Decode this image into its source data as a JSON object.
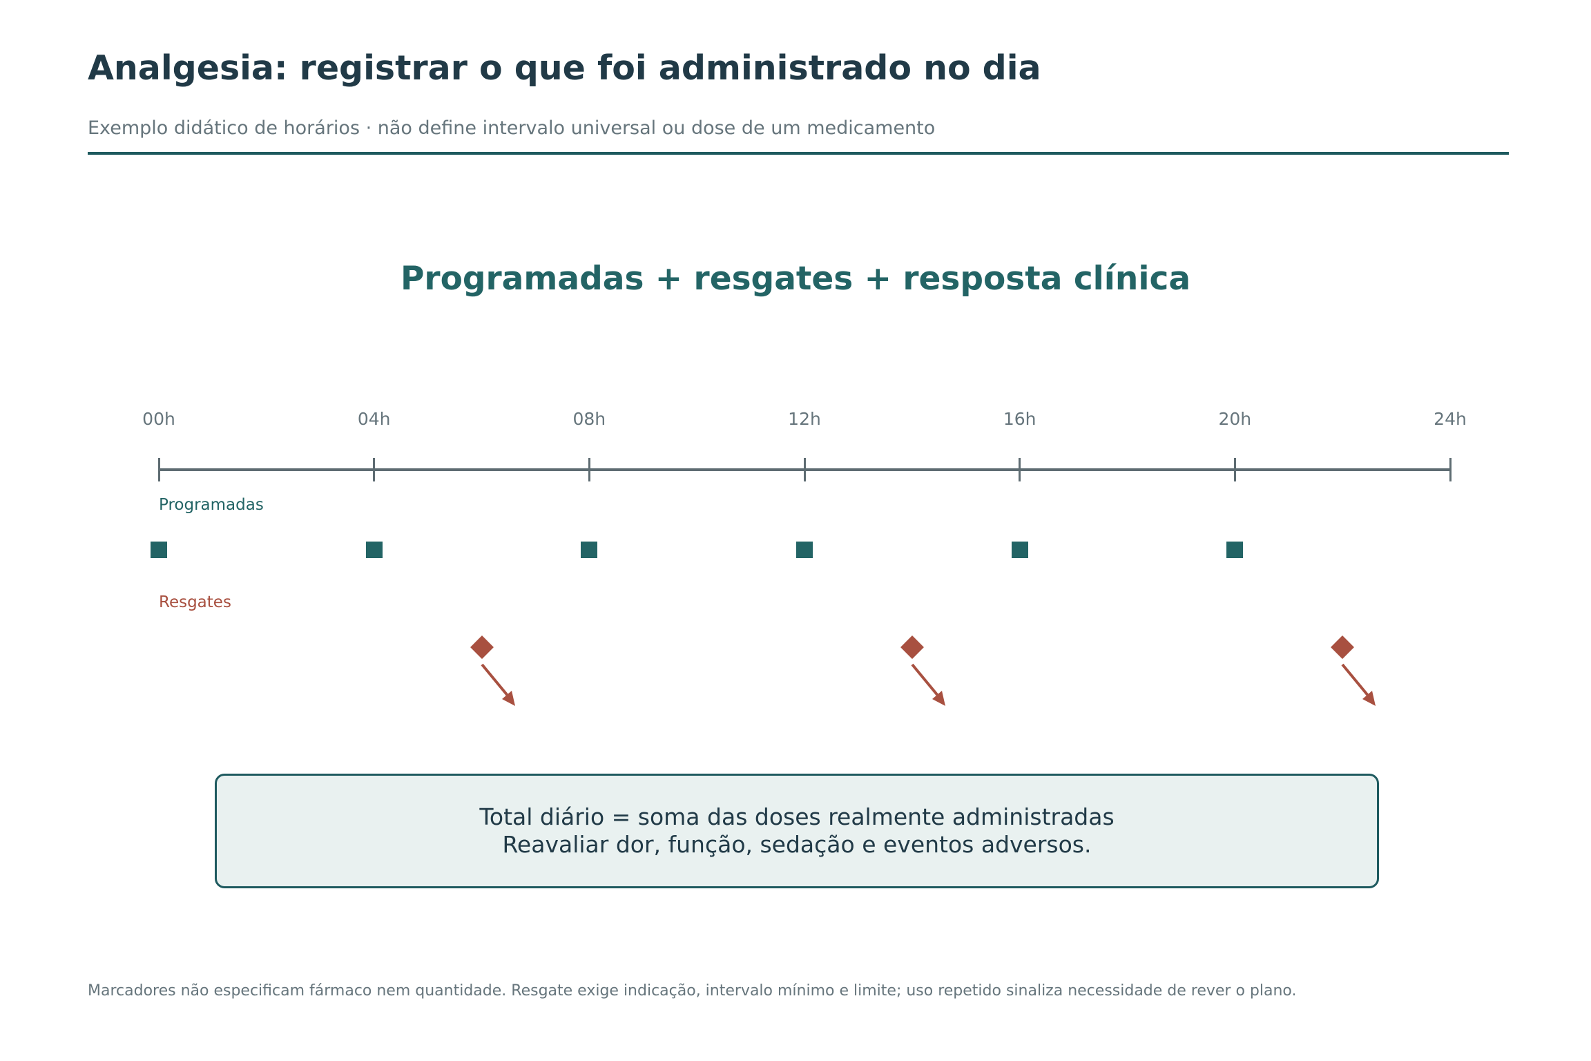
{
  "header": {
    "title": "Analgesia: registrar o que foi administrado no dia",
    "subtitle": "Exemplo didático de horários · não define intervalo universal ou dose de um medicamento"
  },
  "diagram": {
    "heading": "Programadas + resgates + resposta clínica",
    "timeline": {
      "range_hours": [
        0,
        24
      ],
      "ticks": [
        {
          "hour": 0,
          "label": "00h"
        },
        {
          "hour": 4,
          "label": "04h"
        },
        {
          "hour": 8,
          "label": "08h"
        },
        {
          "hour": 12,
          "label": "12h"
        },
        {
          "hour": 16,
          "label": "16h"
        },
        {
          "hour": 20,
          "label": "20h"
        },
        {
          "hour": 24,
          "label": "24h"
        }
      ]
    },
    "scheduled": {
      "label": "Programadas",
      "hours": [
        0,
        4,
        8,
        12,
        16,
        20
      ],
      "marker": "square",
      "color": "#236465"
    },
    "rescue": {
      "label": "Resgates",
      "hours": [
        6,
        14,
        22
      ],
      "marker": "diamond-with-down-right-arrow",
      "color": "#a85040"
    },
    "summary": {
      "line1": "Total diário = soma das doses realmente administradas",
      "line2": "Reavaliar dor, função, sedação e eventos adversos."
    }
  },
  "footnote": "Marcadores não especificam fármaco nem quantidade. Resgate exige indicação, intervalo mínimo e limite; uso repetido sinaliza necessidade de rever o plano.",
  "colors": {
    "text_dark": "#213a47",
    "text_muted": "#66757c",
    "accent_teal": "#236465",
    "accent_rescue": "#a85040",
    "box_fill": "#e9f1f0"
  }
}
